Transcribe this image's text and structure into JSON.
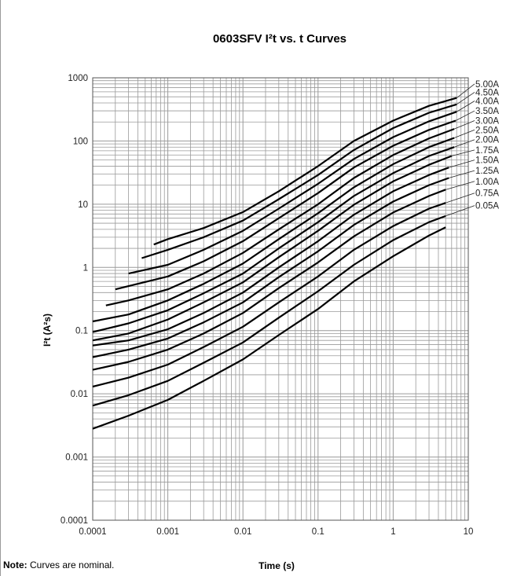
{
  "note": {
    "label": "Note:",
    "text": " Curves are nominal."
  },
  "chart_data": {
    "type": "line",
    "title": "0603SFV I²t  vs. t Curves",
    "xlabel": "Time (s)",
    "ylabel": "I²t (A²s)",
    "xscale": "log",
    "yscale": "log",
    "xlim": [
      0.0001,
      10
    ],
    "ylim": [
      0.0001,
      1000
    ],
    "grid": true,
    "legend": "inline-right",
    "line_color": "#000000",
    "grid_color": "#9a9a9a",
    "x_ticks": [
      {
        "value": 0.0001,
        "label": "0.0001"
      },
      {
        "value": 0.001,
        "label": "0.001"
      },
      {
        "value": 0.01,
        "label": "0.01"
      },
      {
        "value": 0.1,
        "label": "0.1"
      },
      {
        "value": 1,
        "label": "1"
      },
      {
        "value": 10,
        "label": "10"
      }
    ],
    "y_ticks": [
      {
        "value": 0.0001,
        "label": "0.0001"
      },
      {
        "value": 0.001,
        "label": "0.001"
      },
      {
        "value": 0.01,
        "label": "0.01"
      },
      {
        "value": 0.1,
        "label": "0.1"
      },
      {
        "value": 1,
        "label": "1"
      },
      {
        "value": 10,
        "label": "10"
      },
      {
        "value": 100,
        "label": "100"
      },
      {
        "value": 1000,
        "label": "1000"
      }
    ],
    "series": [
      {
        "name": "5.00A",
        "label_y": 800,
        "points": [
          [
            0.00065,
            2.3
          ],
          [
            0.001,
            2.8
          ],
          [
            0.003,
            4.2
          ],
          [
            0.01,
            7.5
          ],
          [
            0.03,
            16
          ],
          [
            0.1,
            40
          ],
          [
            0.3,
            100
          ],
          [
            1,
            210
          ],
          [
            3,
            360
          ],
          [
            7,
            480
          ]
        ]
      },
      {
        "name": "4.50A",
        "label_y": 590,
        "points": [
          [
            0.00045,
            1.4
          ],
          [
            0.001,
            1.9
          ],
          [
            0.003,
            3.0
          ],
          [
            0.01,
            5.5
          ],
          [
            0.03,
            12
          ],
          [
            0.1,
            29
          ],
          [
            0.3,
            72
          ],
          [
            1,
            160
          ],
          [
            3,
            280
          ],
          [
            7,
            380
          ]
        ]
      },
      {
        "name": "4.00A",
        "label_y": 430,
        "points": [
          [
            0.0003,
            0.8
          ],
          [
            0.001,
            1.1
          ],
          [
            0.003,
            1.9
          ],
          [
            0.01,
            3.8
          ],
          [
            0.03,
            8.5
          ],
          [
            0.1,
            21
          ],
          [
            0.3,
            52
          ],
          [
            1,
            115
          ],
          [
            3,
            205
          ],
          [
            7,
            290
          ]
        ]
      },
      {
        "name": "3.50A",
        "label_y": 300,
        "points": [
          [
            0.0002,
            0.45
          ],
          [
            0.001,
            0.72
          ],
          [
            0.003,
            1.25
          ],
          [
            0.01,
            2.6
          ],
          [
            0.03,
            6.0
          ],
          [
            0.1,
            15
          ],
          [
            0.3,
            38
          ],
          [
            1,
            84
          ],
          [
            3,
            150
          ],
          [
            6.8,
            210
          ]
        ]
      },
      {
        "name": "3.00A",
        "label_y": 210,
        "points": [
          [
            0.00015,
            0.25
          ],
          [
            0.0003,
            0.3
          ],
          [
            0.001,
            0.45
          ],
          [
            0.003,
            0.8
          ],
          [
            0.01,
            1.7
          ],
          [
            0.03,
            4.0
          ],
          [
            0.1,
            10
          ],
          [
            0.3,
            26
          ],
          [
            1,
            60
          ],
          [
            3,
            110
          ],
          [
            6.5,
            155
          ]
        ]
      },
      {
        "name": "2.50A",
        "label_y": 150,
        "points": [
          [
            0.0001,
            0.14
          ],
          [
            0.0003,
            0.18
          ],
          [
            0.001,
            0.3
          ],
          [
            0.003,
            0.55
          ],
          [
            0.01,
            1.15
          ],
          [
            0.03,
            2.8
          ],
          [
            0.1,
            7.2
          ],
          [
            0.3,
            18.5
          ],
          [
            1,
            43
          ],
          [
            3,
            80
          ],
          [
            6.5,
            112
          ]
        ]
      },
      {
        "name": "2.00A",
        "label_y": 105,
        "points": [
          [
            0.0001,
            0.095
          ],
          [
            0.0003,
            0.13
          ],
          [
            0.001,
            0.21
          ],
          [
            0.003,
            0.39
          ],
          [
            0.01,
            0.8
          ],
          [
            0.03,
            2.0
          ],
          [
            0.1,
            5.2
          ],
          [
            0.3,
            13.5
          ],
          [
            1,
            31
          ],
          [
            3,
            58
          ],
          [
            6.5,
            80
          ]
        ]
      },
      {
        "name": "1.75A",
        "label_y": 72,
        "points": [
          [
            0.0001,
            0.07
          ],
          [
            0.0003,
            0.09
          ],
          [
            0.001,
            0.15
          ],
          [
            0.003,
            0.28
          ],
          [
            0.01,
            0.58
          ],
          [
            0.03,
            1.45
          ],
          [
            0.1,
            3.8
          ],
          [
            0.3,
            9.8
          ],
          [
            1,
            23
          ],
          [
            3,
            42
          ],
          [
            6,
            58
          ]
        ]
      },
      {
        "name": "1.50A",
        "label_y": 50,
        "points": [
          [
            0.0001,
            0.058
          ],
          [
            0.0003,
            0.07
          ],
          [
            0.001,
            0.105
          ],
          [
            0.003,
            0.19
          ],
          [
            0.01,
            0.4
          ],
          [
            0.03,
            1.0
          ],
          [
            0.1,
            2.6
          ],
          [
            0.3,
            6.8
          ],
          [
            1,
            16
          ],
          [
            3,
            29
          ],
          [
            5.5,
            38
          ]
        ]
      },
      {
        "name": "1.25A",
        "label_y": 34,
        "points": [
          [
            0.0001,
            0.038
          ],
          [
            0.0003,
            0.05
          ],
          [
            0.001,
            0.075
          ],
          [
            0.003,
            0.135
          ],
          [
            0.01,
            0.28
          ],
          [
            0.03,
            0.7
          ],
          [
            0.1,
            1.8
          ],
          [
            0.3,
            4.7
          ],
          [
            1,
            11
          ],
          [
            3,
            20
          ],
          [
            5.5,
            26
          ]
        ]
      },
      {
        "name": "1.00A",
        "label_y": 23,
        "points": [
          [
            0.0001,
            0.024
          ],
          [
            0.0003,
            0.032
          ],
          [
            0.001,
            0.05
          ],
          [
            0.003,
            0.09
          ],
          [
            0.01,
            0.19
          ],
          [
            0.03,
            0.47
          ],
          [
            0.1,
            1.2
          ],
          [
            0.3,
            3.1
          ],
          [
            1,
            7.4
          ],
          [
            3,
            13.5
          ],
          [
            5,
            17
          ]
        ]
      },
      {
        "name": "0.75A",
        "label_y": 15,
        "points": [
          [
            0.0001,
            0.013
          ],
          [
            0.0003,
            0.018
          ],
          [
            0.001,
            0.029
          ],
          [
            0.003,
            0.055
          ],
          [
            0.01,
            0.115
          ],
          [
            0.03,
            0.28
          ],
          [
            0.1,
            0.72
          ],
          [
            0.3,
            1.9
          ],
          [
            1,
            4.5
          ],
          [
            3,
            8.5
          ],
          [
            5,
            10.5
          ]
        ]
      },
      {
        "name": "0.05A",
        "label_y": 9.5,
        "points": [
          [
            0.0001,
            0.0065
          ],
          [
            0.0003,
            0.0095
          ],
          [
            0.001,
            0.016
          ],
          [
            0.003,
            0.031
          ],
          [
            0.01,
            0.065
          ],
          [
            0.03,
            0.16
          ],
          [
            0.1,
            0.42
          ],
          [
            0.3,
            1.1
          ],
          [
            1,
            2.7
          ],
          [
            3,
            5.2
          ],
          [
            5,
            6.5
          ]
        ]
      },
      {
        "name": "",
        "points": [
          [
            0.0001,
            0.0028
          ],
          [
            0.0003,
            0.0045
          ],
          [
            0.001,
            0.008
          ],
          [
            0.003,
            0.016
          ],
          [
            0.01,
            0.035
          ],
          [
            0.03,
            0.085
          ],
          [
            0.1,
            0.22
          ],
          [
            0.3,
            0.6
          ],
          [
            1,
            1.5
          ],
          [
            3,
            3.2
          ],
          [
            5,
            4.3
          ]
        ]
      }
    ]
  }
}
